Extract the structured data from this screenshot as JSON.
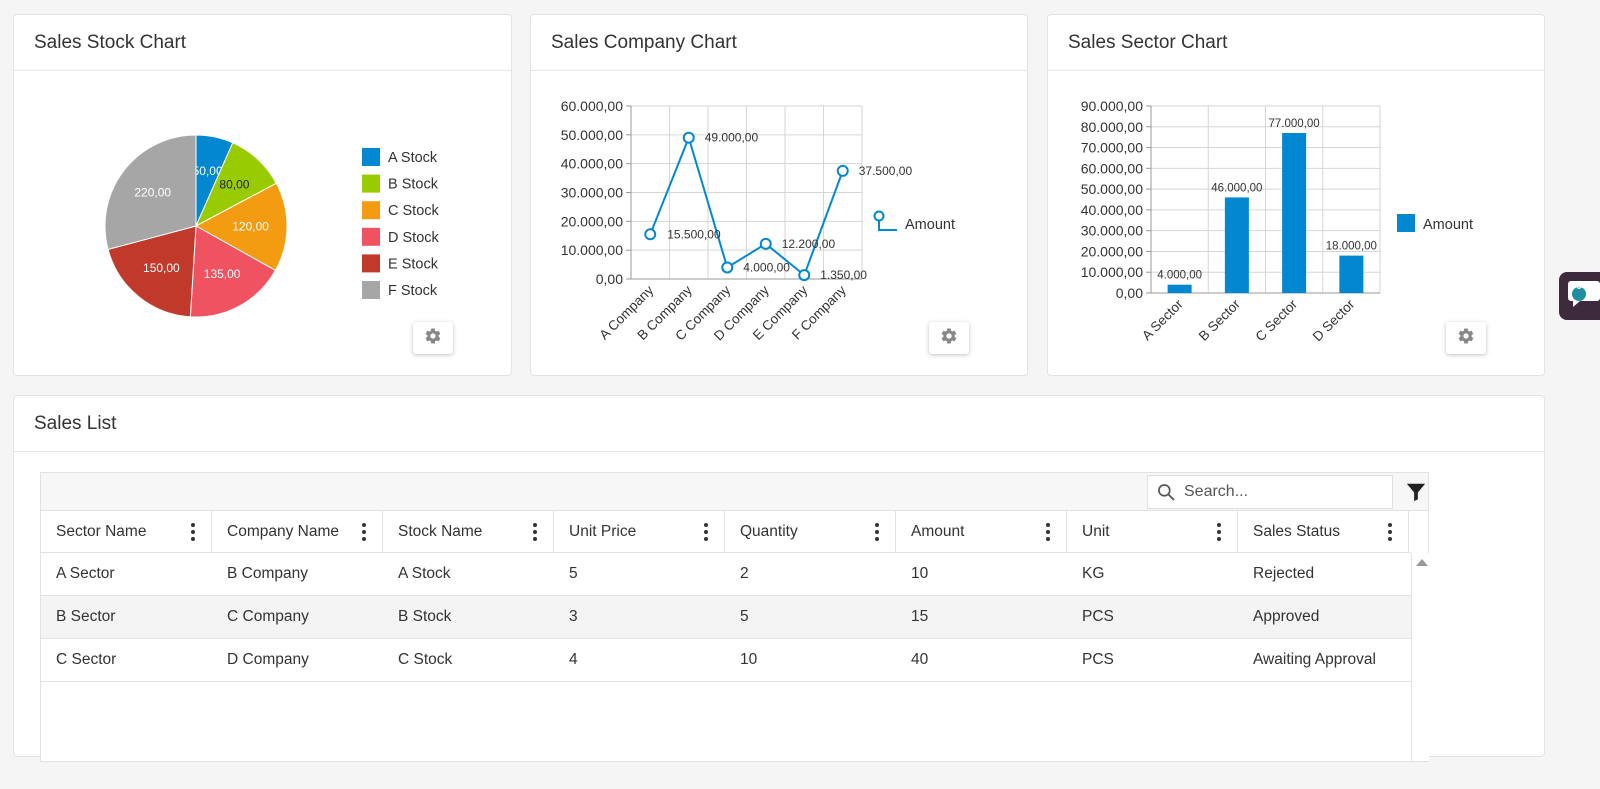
{
  "stock_chart": {
    "title": "Sales Stock Chart",
    "chart_data": {
      "type": "pie",
      "labels": [
        "A Stock",
        "B Stock",
        "C Stock",
        "D Stock",
        "E Stock",
        "F Stock"
      ],
      "values": [
        50,
        80,
        120,
        135,
        150,
        220
      ],
      "value_labels": [
        "50,00",
        "80,00",
        "120,00",
        "135,00",
        "150,00",
        "220,00"
      ],
      "colors": [
        "#0288d1",
        "#99cc00",
        "#f39c12",
        "#ef5362",
        "#c0392b",
        "#a6a6a6"
      ],
      "legend": "right"
    }
  },
  "company_chart": {
    "title": "Sales Company Chart",
    "chart_data": {
      "type": "line",
      "categories": [
        "A Company",
        "B Company",
        "C Company",
        "D Company",
        "E Company",
        "F Company"
      ],
      "series": [
        {
          "name": "Amount",
          "values": [
            15500,
            49000,
            4000,
            12200,
            1350,
            37500
          ]
        }
      ],
      "value_labels": [
        "15.500,00",
        "49.000,00",
        "4.000,00",
        "12.200,00",
        "1.350,00",
        "37.500,00"
      ],
      "yticks": [
        "0,00",
        "10.000,00",
        "20.000,00",
        "30.000,00",
        "40.000,00",
        "50.000,00",
        "60.000,00"
      ],
      "ylim": [
        0,
        60000
      ],
      "color": "#0288d1",
      "grid": true,
      "legend": "right"
    }
  },
  "sector_chart": {
    "title": "Sales Sector Chart",
    "chart_data": {
      "type": "bar",
      "categories": [
        "A Sector",
        "B Sector",
        "C Sector",
        "D Sector"
      ],
      "series": [
        {
          "name": "Amount",
          "values": [
            4000,
            46000,
            77000,
            18000
          ]
        }
      ],
      "value_labels": [
        "4.000,00",
        "46.000,00",
        "77.000,00",
        "18.000,00"
      ],
      "yticks": [
        "0,00",
        "10.000,00",
        "20.000,00",
        "30.000,00",
        "40.000,00",
        "50.000,00",
        "60.000,00",
        "70.000,00",
        "80.000,00",
        "90.000,00"
      ],
      "ylim": [
        0,
        90000
      ],
      "color": "#0288d1",
      "grid": true,
      "legend": "right"
    }
  },
  "sales_list": {
    "title": "Sales List",
    "search_placeholder": "Search...",
    "columns": [
      "Sector Name",
      "Company Name",
      "Stock Name",
      "Unit Price",
      "Quantity",
      "Amount",
      "Unit",
      "Sales Status"
    ],
    "rows": [
      [
        "A Sector",
        "B Company",
        "A Stock",
        "5",
        "2",
        "10",
        "KG",
        "Rejected"
      ],
      [
        "B Sector",
        "C Company",
        "B Stock",
        "3",
        "5",
        "15",
        "PCS",
        "Approved"
      ],
      [
        "C Sector",
        "D Company",
        "C Stock",
        "4",
        "10",
        "40",
        "PCS",
        "Awaiting Approval"
      ]
    ]
  },
  "chat_widget": {
    "badge": "0",
    "color": "#3d2b3d"
  }
}
